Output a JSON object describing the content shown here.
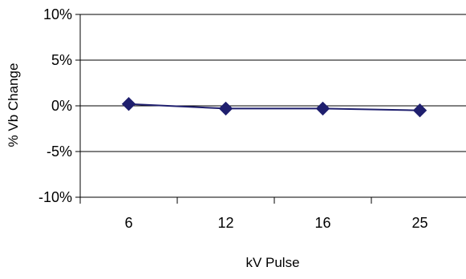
{
  "chart_data": {
    "type": "line",
    "title": "",
    "xlabel": "kV Pulse",
    "ylabel": "% Vb Change",
    "categories": [
      "6",
      "12",
      "16",
      "25"
    ],
    "series": [
      {
        "values": [
          0.2,
          -0.3,
          -0.3,
          -0.5
        ],
        "color": "#1f1f6e",
        "marker": "diamond"
      }
    ],
    "ylim": [
      -10,
      10
    ],
    "yticks": [
      -10,
      -5,
      0,
      5,
      10
    ],
    "ytick_labels": [
      "-10%",
      "-5%",
      "0%",
      "5%",
      "10%"
    ],
    "grid": "horizontal",
    "legend": "none"
  }
}
